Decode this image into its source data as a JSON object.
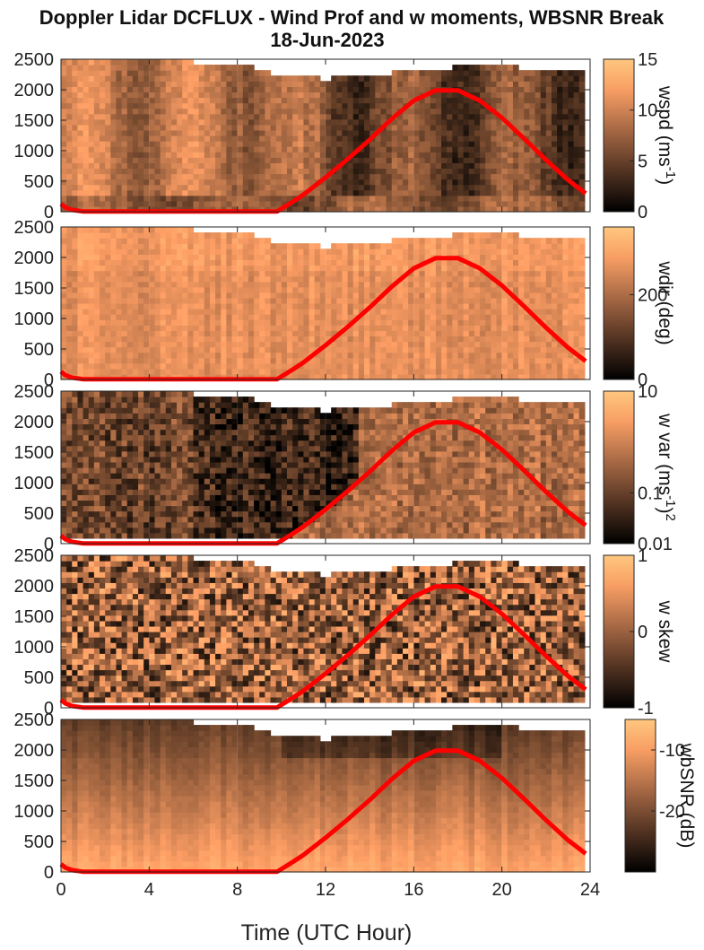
{
  "figure": {
    "title_line1": "Doppler Lidar DCFLUX - Wind Prof and w moments, WBSNR Break",
    "title_line2": "18-Jun-2023",
    "xlabel": "Time (UTC Hour)"
  },
  "chart_data": {
    "type": "heatmap",
    "x_range": [
      0,
      24
    ],
    "x_ticks": [
      0,
      4,
      8,
      12,
      16,
      20,
      24
    ],
    "y_range": [
      0,
      2500
    ],
    "y_ticks": [
      0,
      500,
      1000,
      1500,
      2000,
      2500
    ],
    "colormap": "copper",
    "overlay_line": {
      "color": "#ff0000",
      "x": [
        0,
        0.2,
        0.5,
        1,
        2,
        4,
        6,
        8,
        9.8,
        10.5,
        11,
        12,
        13,
        14,
        15,
        16,
        17,
        18,
        19,
        20,
        21,
        22,
        23,
        23.8
      ],
      "y": [
        130,
        70,
        30,
        5,
        5,
        5,
        5,
        5,
        5,
        160,
        280,
        560,
        860,
        1180,
        1520,
        1820,
        1990,
        1990,
        1820,
        1540,
        1200,
        850,
        520,
        300
      ]
    },
    "panels": [
      {
        "id": "wspd",
        "cbar_label_text": "wspd (ms",
        "cbar_label_sup": "-1",
        "cbar_label_end": ")",
        "clim": [
          0,
          15
        ],
        "cbar_ticks": [
          "0",
          "5",
          "10",
          "15"
        ],
        "cbar_tick_values": [
          0,
          5,
          10,
          15
        ]
      },
      {
        "id": "wdir",
        "cbar_label_text": "wdir (deg)",
        "cbar_label_sup": "",
        "cbar_label_end": "",
        "clim": [
          0,
          360
        ],
        "cbar_ticks": [
          "0",
          "200"
        ],
        "cbar_tick_values": [
          0,
          200
        ]
      },
      {
        "id": "wvar",
        "cbar_label_text": "w var (ms",
        "cbar_label_sup": "-1",
        "cbar_label_end": ")",
        "cbar_label_sup2": "2",
        "clim": [
          0.01,
          10
        ],
        "cbar_scale": "log",
        "cbar_ticks": [
          "0.01",
          "0.1",
          "10"
        ],
        "cbar_tick_values": [
          0.01,
          0.1,
          10
        ]
      },
      {
        "id": "wskew",
        "cbar_label_text": "w skew",
        "cbar_label_sup": "",
        "cbar_label_end": "",
        "clim": [
          -1,
          1
        ],
        "cbar_ticks": [
          "-1",
          "0",
          "1"
        ],
        "cbar_tick_values": [
          -1,
          0,
          1
        ]
      },
      {
        "id": "wbsnr",
        "cbar_label_text": "wbSNR (dB)",
        "cbar_label_sup": "",
        "cbar_label_end": "",
        "clim": [
          -30,
          -5
        ],
        "cbar_ticks": [
          "-20",
          "-10"
        ],
        "cbar_tick_values": [
          -20,
          -10
        ]
      }
    ]
  }
}
